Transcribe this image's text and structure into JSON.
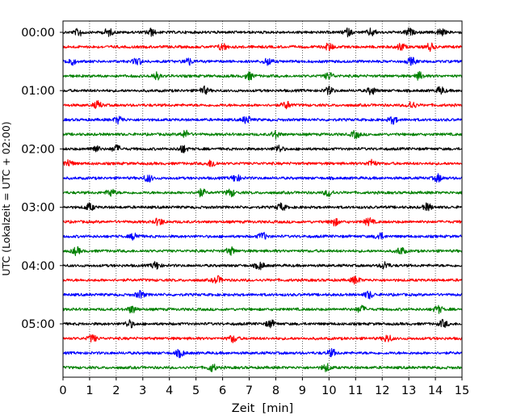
{
  "chart_data": {
    "type": "line",
    "title": "",
    "xlabel": "Zeit  [min]",
    "ylabel": "UTC (Lokalzeit = UTC + 02:00)",
    "xlim": [
      0,
      15
    ],
    "x_ticks": [
      "0",
      "1",
      "2",
      "3",
      "4",
      "5",
      "6",
      "7",
      "8",
      "9",
      "10",
      "11",
      "12",
      "13",
      "14",
      "15"
    ],
    "y_tick_labels": [
      "00:00",
      "01:00",
      "02:00",
      "03:00",
      "04:00",
      "05:00"
    ],
    "grid": "vertical dotted at each minute",
    "trace_interval_min": 15,
    "trace_count": 24,
    "series_colors": [
      "#000000",
      "#ff0000",
      "#0000ff",
      "#008000"
    ],
    "traces": [
      {
        "start": "00:00",
        "color": "#000000",
        "events_min": [
          0.6,
          1.7,
          3.3,
          10.7,
          11.6,
          13.0,
          14.2
        ]
      },
      {
        "start": "00:15",
        "color": "#ff0000",
        "events_min": [
          6.0,
          10.0,
          12.7,
          13.8
        ]
      },
      {
        "start": "00:30",
        "color": "#0000ff",
        "events_min": [
          0.3,
          2.8,
          4.7,
          7.7,
          13.1
        ]
      },
      {
        "start": "00:45",
        "color": "#008000",
        "events_min": [
          3.5,
          7.0,
          10.0,
          13.4
        ]
      },
      {
        "start": "01:00",
        "color": "#000000",
        "events_min": [
          5.3,
          10.0,
          11.6,
          14.2
        ]
      },
      {
        "start": "01:15",
        "color": "#ff0000",
        "events_min": [
          1.3,
          8.4,
          13.1
        ]
      },
      {
        "start": "01:30",
        "color": "#0000ff",
        "events_min": [
          2.1,
          6.9,
          12.4
        ]
      },
      {
        "start": "01:45",
        "color": "#008000",
        "events_min": [
          4.6,
          8.0,
          11.0
        ]
      },
      {
        "start": "02:00",
        "color": "#000000",
        "events_min": [
          1.2,
          2.0,
          4.5,
          8.1
        ]
      },
      {
        "start": "02:15",
        "color": "#ff0000",
        "events_min": [
          0.2,
          5.6,
          11.6
        ]
      },
      {
        "start": "02:30",
        "color": "#0000ff",
        "events_min": [
          3.2,
          6.5,
          14.1
        ]
      },
      {
        "start": "02:45",
        "color": "#008000",
        "events_min": [
          1.8,
          5.2,
          6.3,
          10.0
        ]
      },
      {
        "start": "03:00",
        "color": "#000000",
        "events_min": [
          1.0,
          8.2,
          13.7
        ]
      },
      {
        "start": "03:15",
        "color": "#ff0000",
        "events_min": [
          3.6,
          10.2,
          11.5
        ]
      },
      {
        "start": "03:30",
        "color": "#0000ff",
        "events_min": [
          2.7,
          7.5,
          11.9
        ]
      },
      {
        "start": "03:45",
        "color": "#008000",
        "events_min": [
          0.5,
          6.3,
          12.7
        ]
      },
      {
        "start": "04:00",
        "color": "#000000",
        "events_min": [
          3.5,
          7.4,
          12.1
        ]
      },
      {
        "start": "04:15",
        "color": "#ff0000",
        "events_min": [
          5.8,
          11.0
        ]
      },
      {
        "start": "04:30",
        "color": "#0000ff",
        "events_min": [
          2.9,
          11.5
        ]
      },
      {
        "start": "04:45",
        "color": "#008000",
        "events_min": [
          2.6,
          11.2,
          14.1
        ]
      },
      {
        "start": "05:00",
        "color": "#000000",
        "events_min": [
          2.5,
          7.8,
          14.3
        ]
      },
      {
        "start": "05:15",
        "color": "#ff0000",
        "events_min": [
          1.1,
          6.4,
          12.2
        ]
      },
      {
        "start": "05:30",
        "color": "#0000ff",
        "events_min": [
          4.4,
          10.1
        ]
      },
      {
        "start": "05:45",
        "color": "#008000",
        "events_min": [
          5.6,
          9.9
        ]
      }
    ]
  }
}
